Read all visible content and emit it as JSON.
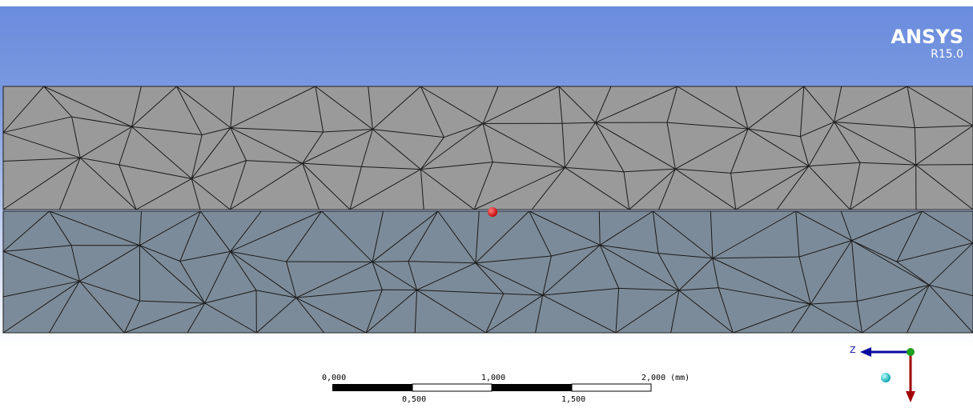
{
  "logo": {
    "brand": "ANSYS",
    "version": "R15.0"
  },
  "scale_bar": {
    "top_labels": [
      "0,000",
      "1,000",
      "2,000 (mm)"
    ],
    "bottom_labels": [
      "0,500",
      "1,500"
    ]
  },
  "triad": {
    "axis_label": "Z"
  }
}
